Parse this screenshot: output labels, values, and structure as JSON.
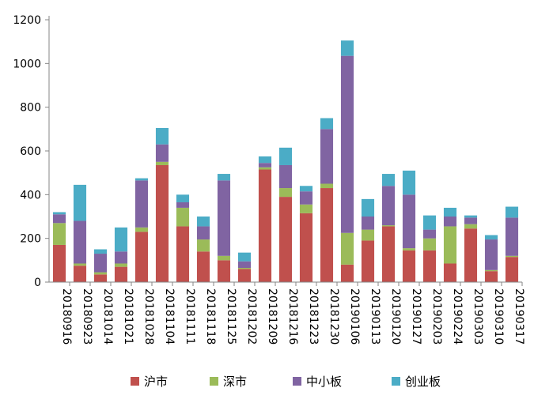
{
  "chart_data": {
    "type": "bar",
    "stacked": true,
    "categories": [
      "20180916",
      "20180923",
      "20181014",
      "20181021",
      "20181028",
      "20181104",
      "20181111",
      "20181118",
      "20181125",
      "20181202",
      "20181209",
      "20181216",
      "20181223",
      "20181230",
      "20190106",
      "20190113",
      "20190120",
      "20190127",
      "20190203",
      "20190224",
      "20190303",
      "20190310",
      "20190317"
    ],
    "series": [
      {
        "name": "沪市",
        "color": "#C0504D",
        "values": [
          170,
          75,
          35,
          70,
          230,
          535,
          255,
          140,
          100,
          60,
          515,
          390,
          315,
          430,
          80,
          190,
          255,
          145,
          145,
          85,
          245,
          50,
          115
        ]
      },
      {
        "name": "深市",
        "color": "#9BBB59",
        "values": [
          100,
          10,
          10,
          15,
          20,
          15,
          85,
          55,
          20,
          5,
          10,
          40,
          40,
          20,
          145,
          50,
          5,
          10,
          55,
          170,
          20,
          5,
          5
        ]
      },
      {
        "name": "中小板",
        "color": "#8064A2",
        "values": [
          40,
          195,
          85,
          55,
          215,
          80,
          25,
          60,
          345,
          30,
          20,
          105,
          60,
          250,
          810,
          60,
          180,
          245,
          40,
          45,
          30,
          140,
          175
        ]
      },
      {
        "name": "创业板",
        "color": "#4BACC6",
        "values": [
          10,
          165,
          20,
          110,
          10,
          75,
          35,
          45,
          30,
          40,
          30,
          80,
          25,
          50,
          70,
          80,
          55,
          110,
          65,
          40,
          10,
          20,
          50
        ]
      }
    ],
    "ylim": [
      0,
      1200
    ],
    "yticks": [
      0,
      200,
      400,
      600,
      800,
      1000,
      1200
    ],
    "grid": false,
    "legend_position": "bottom"
  }
}
